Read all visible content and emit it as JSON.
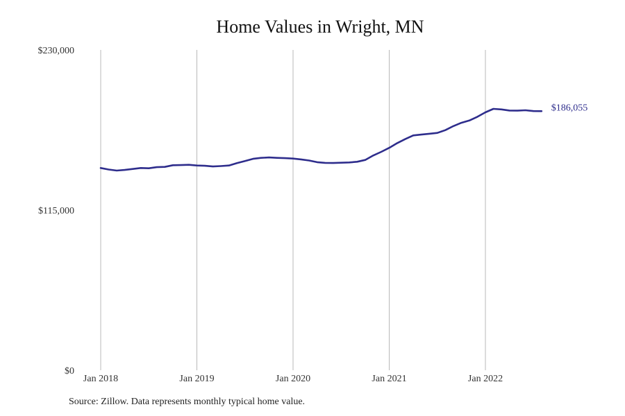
{
  "title": "Home Values in Wright, MN",
  "source_note": "Source: Zillow. Data represents monthly typical home value.",
  "colors": {
    "line": "#2e2d8c",
    "grid": "#b8b8b8",
    "text": "#333333"
  },
  "chart_data": {
    "type": "line",
    "title": "Home Values in Wright, MN",
    "xlabel": "",
    "ylabel": "",
    "x_ticks": [
      "Jan 2018",
      "Jan 2019",
      "Jan 2020",
      "Jan 2021",
      "Jan 2022"
    ],
    "y_ticks": [
      "$0",
      "$115,000",
      "$230,000"
    ],
    "y_tick_values": [
      0,
      115000,
      230000
    ],
    "ylim": [
      0,
      230000
    ],
    "x_range": [
      "2018-01",
      "2022-08"
    ],
    "grid": "vertical lines at yearly ticks",
    "end_label": "$186,055",
    "series": [
      {
        "x": [
          "2018-01",
          "2018-02",
          "2018-03",
          "2018-04",
          "2018-05",
          "2018-06",
          "2018-07",
          "2018-08",
          "2018-09",
          "2018-10",
          "2018-11",
          "2018-12",
          "2019-01",
          "2019-02",
          "2019-03",
          "2019-04",
          "2019-05",
          "2019-06",
          "2019-07",
          "2019-08",
          "2019-09",
          "2019-10",
          "2019-11",
          "2019-12",
          "2020-01",
          "2020-02",
          "2020-03",
          "2020-04",
          "2020-05",
          "2020-06",
          "2020-07",
          "2020-08",
          "2020-09",
          "2020-10",
          "2020-11",
          "2020-12",
          "2021-01",
          "2021-02",
          "2021-03",
          "2021-04",
          "2021-05",
          "2021-06",
          "2021-07",
          "2021-08",
          "2021-09",
          "2021-10",
          "2021-11",
          "2021-12",
          "2022-01",
          "2022-02",
          "2022-03",
          "2022-04",
          "2022-05",
          "2022-06",
          "2022-07",
          "2022-08"
        ],
        "values": [
          145200,
          144100,
          143400,
          143800,
          144500,
          145200,
          145000,
          145800,
          146000,
          147200,
          147300,
          147500,
          147000,
          146800,
          146300,
          146600,
          147000,
          148700,
          150200,
          151800,
          152500,
          152800,
          152500,
          152300,
          152000,
          151400,
          150600,
          149400,
          148900,
          148800,
          149000,
          149200,
          149700,
          151000,
          154200,
          156800,
          159700,
          163100,
          166000,
          168600,
          169200,
          169800,
          170400,
          172400,
          175300,
          177700,
          179300,
          182000,
          185200,
          187700,
          187300,
          186500,
          186400,
          186700,
          186100,
          186055
        ]
      }
    ]
  }
}
